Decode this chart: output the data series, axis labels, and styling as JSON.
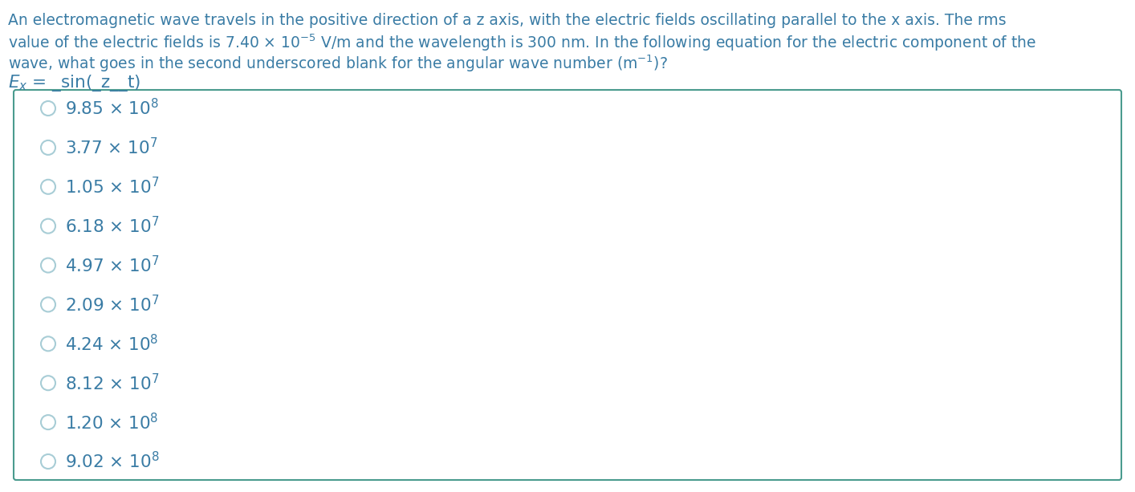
{
  "line1": "An electromagnetic wave travels in the positive direction of a z axis, with the electric fields oscillating parallel to the x axis. The rms",
  "line2_pre": "value of the electric fields is 7.40 × 10",
  "line2_post": " V/m and the wavelength is 300 nm. In the following equation for the electric component of the",
  "line3_pre": "wave, what goes in the second underscored blank for the angular wave number (m",
  "line3_post": ")?",
  "eq_line": "$E_x$ = _sin(_z__t)",
  "options_base": [
    "9.85",
    "3.77",
    "1.05",
    "6.18",
    "4.97",
    "2.09",
    "4.24",
    "8.12",
    "1.20",
    "9.02"
  ],
  "options_exp": [
    "8",
    "7",
    "7",
    "7",
    "7",
    "7",
    "8",
    "7",
    "8",
    "8"
  ],
  "text_color": "#3A7CA5",
  "bg_color": "#ffffff",
  "box_border": "#4A9B8E",
  "circle_color": "#A8CDD6",
  "font_size_body": 13.5,
  "font_size_eq": 15.5,
  "font_size_options": 15.5,
  "fig_width": 14.14,
  "fig_height": 6.13,
  "fig_dpi": 100
}
